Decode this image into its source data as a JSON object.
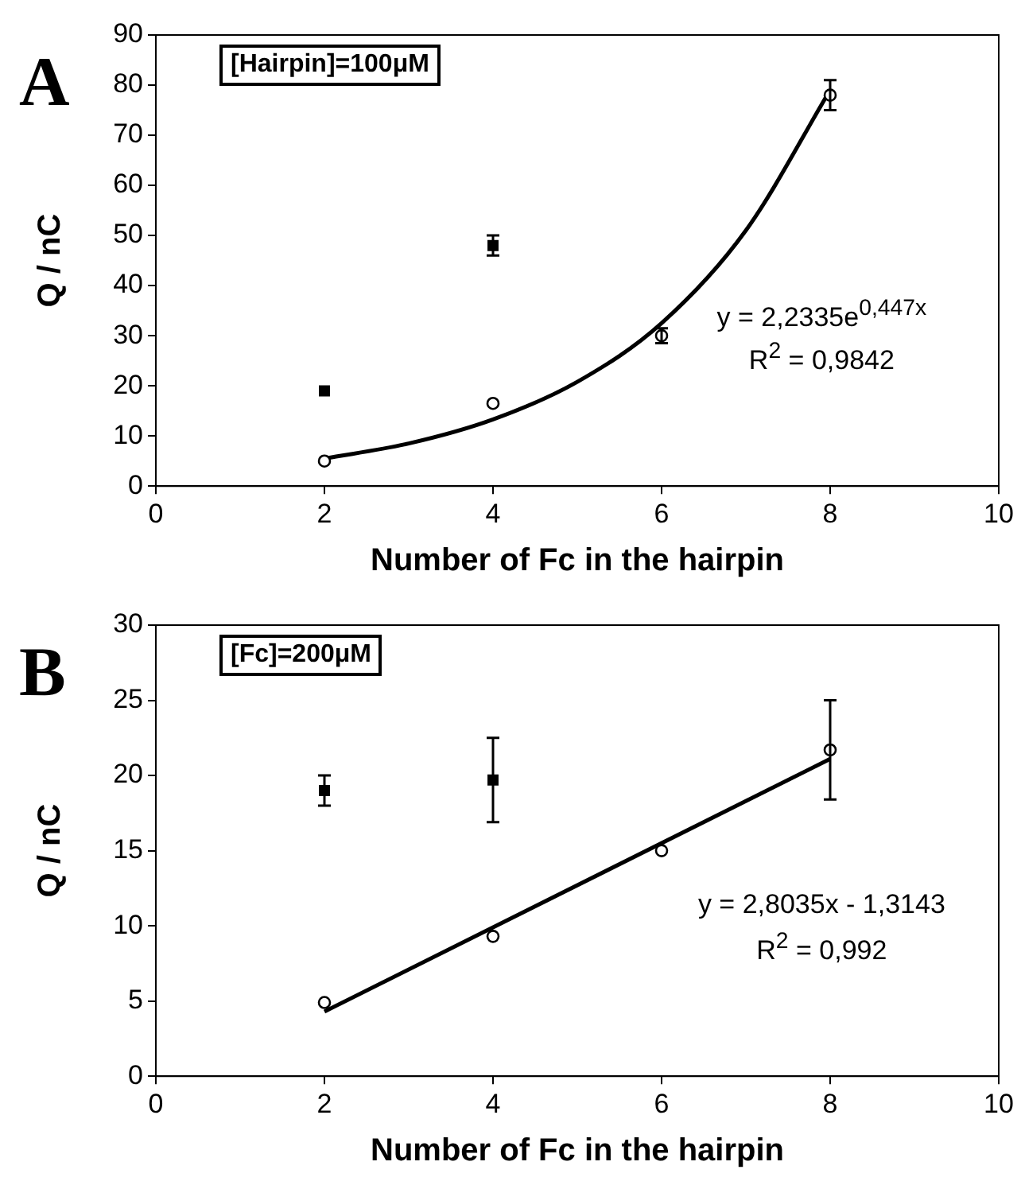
{
  "chart_data": [
    {
      "type": "scatter",
      "xlabel": "Number of Fc in the hairpin",
      "ylabel": "Q / nC",
      "xlim": [
        0,
        10
      ],
      "xticks": [
        0,
        2,
        4,
        6,
        8,
        10
      ],
      "ylim": [
        0,
        90
      ],
      "yticks": [
        0,
        10,
        20,
        30,
        40,
        50,
        60,
        70,
        80,
        90
      ],
      "grid": false,
      "legend": false,
      "annotations": [
        "A",
        "[Hairpin]=100μM",
        "y = 2,2335e$^{0,447x}$",
        "R$^{2}$ = 0,9842"
      ],
      "series": [
        {
          "color": "#000000",
          "marker": "square",
          "x": [
            2,
            4
          ],
          "values": [
            19,
            48
          ],
          "errors": [
            null,
            2
          ]
        },
        {
          "color": "#000000",
          "marker": "circle",
          "x": [
            2,
            4,
            6,
            8
          ],
          "values": [
            5,
            16.5,
            30,
            78
          ],
          "errors": [
            null,
            null,
            1.5,
            3
          ]
        },
        {
          "type": "line",
          "color": "#000000",
          "marker": "none",
          "x": [
            2,
            3,
            4,
            5,
            6,
            7,
            8
          ],
          "values": [
            5.5,
            8.5,
            13.3,
            20.8,
            32.5,
            51,
            79
          ]
        }
      ]
    },
    {
      "type": "scatter",
      "xlabel": "Number of Fc in the hairpin",
      "ylabel": "Q / nC",
      "xlim": [
        0,
        10
      ],
      "xticks": [
        0,
        2,
        4,
        6,
        8,
        10
      ],
      "ylim": [
        0,
        30
      ],
      "yticks": [
        0,
        5,
        10,
        15,
        20,
        25,
        30
      ],
      "grid": false,
      "legend": false,
      "annotations": [
        "B",
        "[Fc]=200μM",
        "y = 2,8035x - 1,3143",
        "R$^{2}$ = 0,992"
      ],
      "series": [
        {
          "color": "#000000",
          "marker": "square",
          "x": [
            2,
            4
          ],
          "values": [
            19,
            19.7
          ],
          "errors": [
            1,
            2.8
          ]
        },
        {
          "color": "#000000",
          "marker": "circle",
          "x": [
            2,
            4,
            6,
            8
          ],
          "values": [
            4.9,
            9.3,
            15,
            21.7
          ],
          "errors": [
            null,
            null,
            null,
            3.3
          ]
        },
        {
          "type": "line",
          "color": "#000000",
          "marker": "none",
          "x": [
            2,
            8
          ],
          "values": [
            4.3,
            21.1
          ]
        }
      ]
    }
  ]
}
